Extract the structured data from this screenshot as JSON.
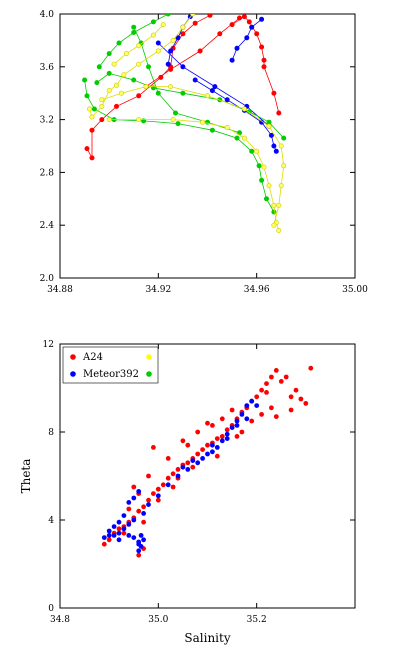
{
  "chart_data": [
    {
      "type": "line",
      "title": "",
      "xlabel": "",
      "ylabel": "",
      "xlim": [
        34.88,
        35.0
      ],
      "ylim": [
        2.0,
        4.0
      ],
      "xticks": [
        "34.88",
        "34.92",
        "34.96",
        "35.00"
      ],
      "yticks": [
        "2.0",
        "2.4",
        "2.8",
        "3.2",
        "3.6",
        "4.0"
      ],
      "grid": false,
      "series": [
        {
          "color": "#ff0000",
          "points": [
            [
              34.891,
              2.98
            ],
            [
              34.893,
              2.91
            ],
            [
              34.893,
              3.12
            ],
            [
              34.897,
              3.2
            ],
            [
              34.903,
              3.3
            ],
            [
              34.912,
              3.38
            ],
            [
              34.921,
              3.52
            ],
            [
              34.925,
              3.6
            ],
            [
              34.926,
              3.74
            ],
            [
              34.93,
              3.85
            ],
            [
              34.935,
              3.93
            ],
            [
              34.941,
              3.99
            ]
          ]
        },
        {
          "color": "#ff0000",
          "points": [
            [
              34.95,
              3.92
            ],
            [
              34.955,
              3.98
            ],
            [
              34.957,
              3.94
            ],
            [
              34.96,
              3.85
            ],
            [
              34.962,
              3.75
            ],
            [
              34.963,
              3.65
            ],
            [
              34.963,
              3.6
            ],
            [
              34.967,
              3.4
            ],
            [
              34.969,
              3.25
            ]
          ]
        },
        {
          "color": "#ff0000",
          "points": [
            [
              34.915,
              3.45
            ],
            [
              34.925,
              3.58
            ],
            [
              34.937,
              3.72
            ],
            [
              34.945,
              3.85
            ],
            [
              34.953,
              3.97
            ]
          ]
        },
        {
          "color": "#0000ff",
          "points": [
            [
              34.924,
              3.62
            ],
            [
              34.925,
              3.72
            ],
            [
              34.928,
              3.82
            ],
            [
              34.93,
              3.9
            ],
            [
              34.933,
              3.98
            ]
          ]
        },
        {
          "color": "#0000ff",
          "points": [
            [
              34.95,
              3.65
            ],
            [
              34.952,
              3.74
            ],
            [
              34.956,
              3.82
            ],
            [
              34.958,
              3.9
            ],
            [
              34.962,
              3.96
            ]
          ]
        },
        {
          "color": "#0000ff",
          "points": [
            [
              34.935,
              3.5
            ],
            [
              34.942,
              3.42
            ],
            [
              34.948,
              3.35
            ],
            [
              34.955,
              3.27
            ],
            [
              34.962,
              3.18
            ],
            [
              34.966,
              3.08
            ],
            [
              34.967,
              3.0
            ],
            [
              34.968,
              2.96
            ]
          ]
        },
        {
          "color": "#0000ff",
          "points": [
            [
              34.92,
              3.78
            ],
            [
              34.93,
              3.6
            ],
            [
              34.943,
              3.45
            ],
            [
              34.956,
              3.3
            ],
            [
              34.965,
              3.15
            ]
          ]
        },
        {
          "color": "#00cc00",
          "points": [
            [
              34.89,
              3.5
            ],
            [
              34.891,
              3.38
            ],
            [
              34.894,
              3.28
            ],
            [
              34.902,
              3.2
            ],
            [
              34.914,
              3.19
            ],
            [
              34.928,
              3.17
            ],
            [
              34.942,
              3.12
            ],
            [
              34.952,
              3.06
            ],
            [
              34.958,
              2.96
            ],
            [
              34.961,
              2.85
            ],
            [
              34.962,
              2.74
            ],
            [
              34.964,
              2.6
            ],
            [
              34.967,
              2.5
            ]
          ]
        },
        {
          "color": "#00cc00",
          "points": [
            [
              34.896,
              3.6
            ],
            [
              34.9,
              3.7
            ],
            [
              34.904,
              3.78
            ],
            [
              34.91,
              3.86
            ],
            [
              34.918,
              3.94
            ],
            [
              34.924,
              4.0
            ]
          ]
        },
        {
          "color": "#00cc00",
          "points": [
            [
              34.895,
              3.48
            ],
            [
              34.9,
              3.55
            ],
            [
              34.91,
              3.5
            ],
            [
              34.918,
              3.44
            ],
            [
              34.93,
              3.4
            ],
            [
              34.945,
              3.35
            ],
            [
              34.957,
              3.26
            ],
            [
              34.965,
              3.18
            ],
            [
              34.971,
              3.06
            ]
          ]
        },
        {
          "color": "#00cc00",
          "points": [
            [
              34.91,
              3.9
            ],
            [
              34.913,
              3.78
            ],
            [
              34.916,
              3.6
            ],
            [
              34.92,
              3.4
            ],
            [
              34.927,
              3.25
            ],
            [
              34.94,
              3.18
            ],
            [
              34.953,
              3.1
            ]
          ]
        },
        {
          "color": "#dddd00",
          "points": [
            [
              34.892,
              3.28
            ],
            [
              34.893,
              3.22
            ],
            [
              34.897,
              3.3
            ],
            [
              34.9,
              3.42
            ],
            [
              34.903,
              3.46
            ],
            [
              34.906,
              3.54
            ],
            [
              34.912,
              3.62
            ],
            [
              34.92,
              3.72
            ],
            [
              34.926,
              3.8
            ],
            [
              34.93,
              3.9
            ],
            [
              34.934,
              4.0
            ]
          ]
        },
        {
          "color": "#dddd00",
          "points": [
            [
              34.9,
              3.2
            ],
            [
              34.912,
              3.2
            ],
            [
              34.926,
              3.2
            ],
            [
              34.938,
              3.18
            ],
            [
              34.948,
              3.14
            ],
            [
              34.955,
              3.06
            ],
            [
              34.96,
              2.96
            ],
            [
              34.963,
              2.84
            ],
            [
              34.965,
              2.7
            ],
            [
              34.967,
              2.55
            ],
            [
              34.968,
              2.42
            ],
            [
              34.969,
              2.36
            ]
          ]
        },
        {
          "color": "#dddd00",
          "points": [
            [
              34.897,
              3.35
            ],
            [
              34.905,
              3.4
            ],
            [
              34.915,
              3.45
            ],
            [
              34.925,
              3.45
            ],
            [
              34.94,
              3.38
            ],
            [
              34.955,
              3.28
            ],
            [
              34.965,
              3.15
            ],
            [
              34.97,
              3.0
            ],
            [
              34.971,
              2.85
            ],
            [
              34.97,
              2.7
            ],
            [
              34.969,
              2.55
            ],
            [
              34.967,
              2.4
            ]
          ]
        },
        {
          "color": "#dddd00",
          "points": [
            [
              34.902,
              3.62
            ],
            [
              34.907,
              3.7
            ],
            [
              34.912,
              3.76
            ],
            [
              34.918,
              3.84
            ],
            [
              34.922,
              3.92
            ]
          ]
        }
      ]
    },
    {
      "type": "scatter",
      "title": "",
      "xlabel": "Salinity",
      "ylabel": "Theta",
      "xlim": [
        34.8,
        35.4
      ],
      "ylim": [
        0,
        12
      ],
      "xticks": [
        "34.8",
        "35.0",
        "35.2"
      ],
      "yticks": [
        "0",
        "4",
        "8",
        "12"
      ],
      "grid": false,
      "legend": {
        "placement": "top-left",
        "entries": [
          {
            "label": "A24",
            "color": "#ff0000"
          },
          {
            "label": "",
            "color": "#ffff00"
          },
          {
            "label": "Meteor392",
            "color": "#0000ff"
          },
          {
            "label": "",
            "color": "#00cc00"
          }
        ]
      },
      "series": [
        {
          "name": "A24",
          "color": "#ff0000",
          "points": [
            [
              34.89,
              2.9
            ],
            [
              34.9,
              3.1
            ],
            [
              34.91,
              3.4
            ],
            [
              34.92,
              3.6
            ],
            [
              34.93,
              3.7
            ],
            [
              34.94,
              3.9
            ],
            [
              34.95,
              4.1
            ],
            [
              34.96,
              4.4
            ],
            [
              34.97,
              4.6
            ],
            [
              34.98,
              4.9
            ],
            [
              34.99,
              5.2
            ],
            [
              35.0,
              5.4
            ],
            [
              35.01,
              5.6
            ],
            [
              35.02,
              5.9
            ],
            [
              35.03,
              6.1
            ],
            [
              35.04,
              6.3
            ],
            [
              35.05,
              6.5
            ],
            [
              35.06,
              6.6
            ],
            [
              35.07,
              6.8
            ],
            [
              35.08,
              7.0
            ],
            [
              35.09,
              7.2
            ],
            [
              35.1,
              7.4
            ],
            [
              35.11,
              7.5
            ],
            [
              35.12,
              7.7
            ],
            [
              35.13,
              7.8
            ],
            [
              35.14,
              8.1
            ],
            [
              35.15,
              8.3
            ],
            [
              35.16,
              8.6
            ],
            [
              35.17,
              8.9
            ],
            [
              35.18,
              9.1
            ],
            [
              35.19,
              9.4
            ],
            [
              35.2,
              9.6
            ],
            [
              35.21,
              9.9
            ],
            [
              35.22,
              10.2
            ],
            [
              35.23,
              10.5
            ],
            [
              35.24,
              10.8
            ],
            [
              35.26,
              10.5
            ],
            [
              35.28,
              9.9
            ],
            [
              35.29,
              9.5
            ],
            [
              35.31,
              10.9
            ],
            [
              35.3,
              9.3
            ],
            [
              35.27,
              9.0
            ],
            [
              35.24,
              8.7
            ],
            [
              34.96,
              2.4
            ],
            [
              34.97,
              2.7
            ],
            [
              34.95,
              5.5
            ],
            [
              34.96,
              5.2
            ],
            [
              34.98,
              6.0
            ],
            [
              35.02,
              6.8
            ],
            [
              35.05,
              7.6
            ],
            [
              35.08,
              8.0
            ],
            [
              35.1,
              8.4
            ],
            [
              35.13,
              8.6
            ],
            [
              35.15,
              9.0
            ],
            [
              35.04,
              5.9
            ],
            [
              35.07,
              6.4
            ],
            [
              34.99,
              7.3
            ],
            [
              35.0,
              4.9
            ],
            [
              34.93,
              3.4
            ],
            [
              34.94,
              4.5
            ],
            [
              35.11,
              8.3
            ],
            [
              35.16,
              7.8
            ],
            [
              35.19,
              8.5
            ],
            [
              35.22,
              9.8
            ],
            [
              35.25,
              10.3
            ],
            [
              35.12,
              6.9
            ],
            [
              35.06,
              7.4
            ],
            [
              35.03,
              5.5
            ],
            [
              34.97,
              3.9
            ],
            [
              35.17,
              8.0
            ],
            [
              35.21,
              8.8
            ],
            [
              35.23,
              9.1
            ],
            [
              35.27,
              9.6
            ]
          ]
        },
        {
          "name": "Meteor392",
          "color": "#0000ff",
          "points": [
            [
              34.89,
              3.2
            ],
            [
              34.9,
              3.5
            ],
            [
              34.91,
              3.3
            ],
            [
              34.92,
              3.4
            ],
            [
              34.93,
              3.6
            ],
            [
              34.94,
              3.8
            ],
            [
              34.95,
              4.0
            ],
            [
              34.95,
              3.2
            ],
            [
              34.96,
              3.0
            ],
            [
              34.96,
              2.6
            ],
            [
              34.965,
              2.8
            ],
            [
              34.965,
              3.3
            ],
            [
              34.97,
              4.3
            ],
            [
              34.98,
              4.7
            ],
            [
              35.0,
              5.1
            ],
            [
              35.02,
              5.6
            ],
            [
              35.04,
              6.0
            ],
            [
              35.06,
              6.3
            ],
            [
              35.08,
              6.6
            ],
            [
              35.09,
              6.8
            ],
            [
              35.1,
              7.0
            ],
            [
              35.11,
              7.1
            ],
            [
              35.12,
              7.3
            ],
            [
              35.13,
              7.6
            ],
            [
              35.14,
              7.9
            ],
            [
              35.15,
              8.2
            ],
            [
              35.16,
              8.5
            ],
            [
              35.17,
              8.8
            ],
            [
              35.18,
              9.2
            ],
            [
              35.19,
              9.4
            ],
            [
              35.2,
              9.2
            ],
            [
              34.92,
              3.9
            ],
            [
              34.93,
              4.2
            ],
            [
              34.94,
              4.8
            ],
            [
              34.95,
              5.0
            ],
            [
              34.96,
              5.3
            ],
            [
              35.05,
              6.4
            ],
            [
              35.07,
              6.7
            ],
            [
              35.11,
              7.4
            ],
            [
              35.14,
              7.7
            ],
            [
              35.16,
              8.3
            ],
            [
              35.18,
              8.6
            ],
            [
              34.91,
              3.7
            ],
            [
              34.9,
              3.3
            ],
            [
              34.92,
              3.1
            ],
            [
              34.94,
              3.3
            ],
            [
              34.96,
              2.9
            ],
            [
              34.97,
              3.1
            ]
          ]
        }
      ]
    }
  ]
}
